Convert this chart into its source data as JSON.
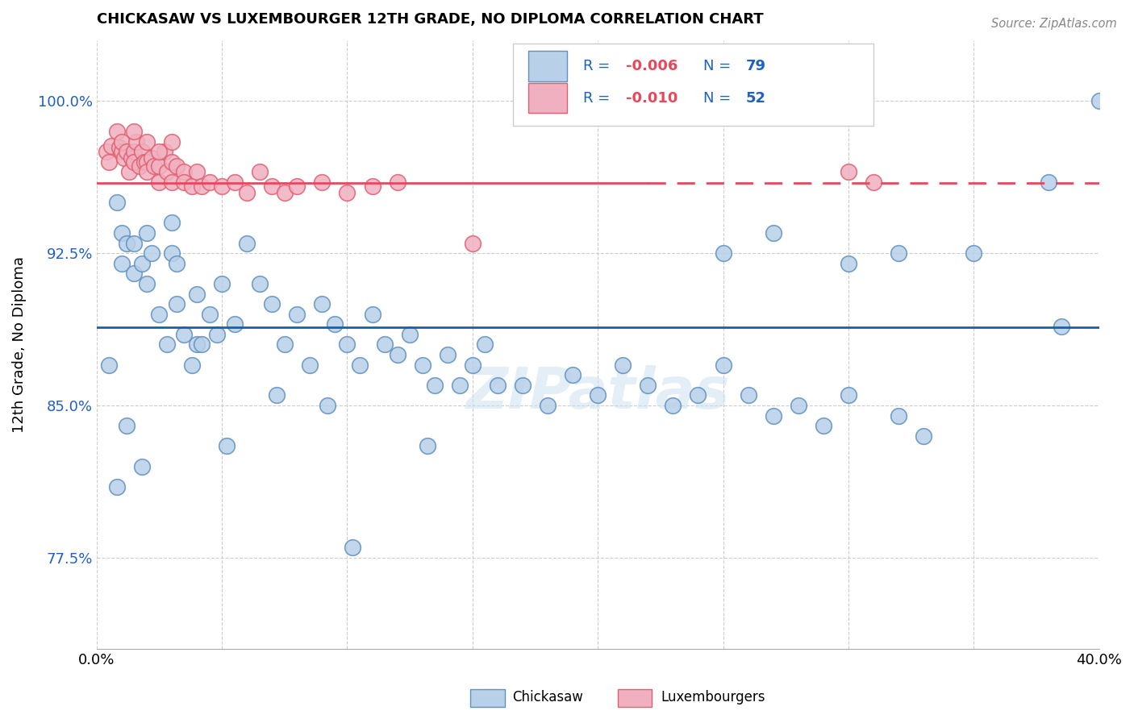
{
  "title": "CHICKASAW VS LUXEMBOURGER 12TH GRADE, NO DIPLOMA CORRELATION CHART",
  "source": "Source: ZipAtlas.com",
  "ylabel": "12th Grade, No Diploma",
  "xlim": [
    0.0,
    0.4
  ],
  "ylim": [
    0.73,
    1.03
  ],
  "yticks": [
    0.775,
    0.85,
    0.925,
    1.0
  ],
  "ytick_labels": [
    "77.5%",
    "85.0%",
    "92.5%",
    "100.0%"
  ],
  "xticks": [
    0.0,
    0.05,
    0.1,
    0.15,
    0.2,
    0.25,
    0.3,
    0.35,
    0.4
  ],
  "xtick_labels": [
    "0.0%",
    "",
    "",
    "",
    "",
    "",
    "",
    "",
    "40.0%"
  ],
  "blue_color": "#b8d0e8",
  "pink_color": "#f0b0c0",
  "blue_edge_color": "#6090c0",
  "pink_edge_color": "#e06070",
  "blue_line_color": "#1a5fa8",
  "pink_line_color": "#e8485a",
  "legend_R_color": "#2060c0",
  "legend_N_color": "#2060c0",
  "legend_R_blue": "-0.006",
  "legend_N_blue": "79",
  "legend_R_pink": "-0.010",
  "legend_N_pink": "52",
  "blue_line_y": 0.8885,
  "pink_line_y": 0.9595,
  "watermark": "ZIPatlas",
  "blue_x": [
    0.008,
    0.01,
    0.01,
    0.012,
    0.015,
    0.015,
    0.018,
    0.02,
    0.02,
    0.022,
    0.025,
    0.028,
    0.03,
    0.03,
    0.032,
    0.035,
    0.038,
    0.04,
    0.04,
    0.045,
    0.048,
    0.05,
    0.055,
    0.06,
    0.065,
    0.07,
    0.075,
    0.08,
    0.085,
    0.09,
    0.095,
    0.1,
    0.105,
    0.11,
    0.115,
    0.12,
    0.125,
    0.13,
    0.135,
    0.14,
    0.145,
    0.15,
    0.155,
    0.16,
    0.17,
    0.18,
    0.19,
    0.2,
    0.21,
    0.22,
    0.23,
    0.24,
    0.25,
    0.26,
    0.27,
    0.28,
    0.29,
    0.3,
    0.32,
    0.33,
    0.25,
    0.27,
    0.3,
    0.32,
    0.35,
    0.38,
    0.4,
    0.092,
    0.102,
    0.132,
    0.072,
    0.052,
    0.042,
    0.032,
    0.018,
    0.012,
    0.008,
    0.005,
    0.385
  ],
  "blue_y": [
    0.95,
    0.935,
    0.92,
    0.93,
    0.93,
    0.915,
    0.92,
    0.935,
    0.91,
    0.925,
    0.895,
    0.88,
    0.94,
    0.925,
    0.9,
    0.885,
    0.87,
    0.905,
    0.88,
    0.895,
    0.885,
    0.91,
    0.89,
    0.93,
    0.91,
    0.9,
    0.88,
    0.895,
    0.87,
    0.9,
    0.89,
    0.88,
    0.87,
    0.895,
    0.88,
    0.875,
    0.885,
    0.87,
    0.86,
    0.875,
    0.86,
    0.87,
    0.88,
    0.86,
    0.86,
    0.85,
    0.865,
    0.855,
    0.87,
    0.86,
    0.85,
    0.855,
    0.87,
    0.855,
    0.845,
    0.85,
    0.84,
    0.855,
    0.845,
    0.835,
    0.925,
    0.935,
    0.92,
    0.925,
    0.925,
    0.96,
    1.0,
    0.85,
    0.78,
    0.83,
    0.855,
    0.83,
    0.88,
    0.92,
    0.82,
    0.84,
    0.81,
    0.87,
    0.889
  ],
  "pink_x": [
    0.004,
    0.005,
    0.006,
    0.008,
    0.009,
    0.01,
    0.01,
    0.011,
    0.012,
    0.013,
    0.014,
    0.015,
    0.015,
    0.016,
    0.017,
    0.018,
    0.019,
    0.02,
    0.02,
    0.022,
    0.023,
    0.025,
    0.025,
    0.027,
    0.028,
    0.03,
    0.03,
    0.032,
    0.035,
    0.035,
    0.038,
    0.04,
    0.042,
    0.045,
    0.05,
    0.055,
    0.06,
    0.065,
    0.07,
    0.075,
    0.08,
    0.09,
    0.1,
    0.11,
    0.12,
    0.015,
    0.02,
    0.025,
    0.03,
    0.15,
    0.3,
    0.31
  ],
  "pink_y": [
    0.975,
    0.97,
    0.978,
    0.985,
    0.977,
    0.975,
    0.98,
    0.972,
    0.975,
    0.965,
    0.972,
    0.975,
    0.97,
    0.98,
    0.968,
    0.975,
    0.97,
    0.97,
    0.965,
    0.972,
    0.968,
    0.968,
    0.96,
    0.975,
    0.965,
    0.97,
    0.96,
    0.968,
    0.965,
    0.96,
    0.958,
    0.965,
    0.958,
    0.96,
    0.958,
    0.96,
    0.955,
    0.965,
    0.958,
    0.955,
    0.958,
    0.96,
    0.955,
    0.958,
    0.96,
    0.985,
    0.98,
    0.975,
    0.98,
    0.93,
    0.965,
    0.96
  ]
}
